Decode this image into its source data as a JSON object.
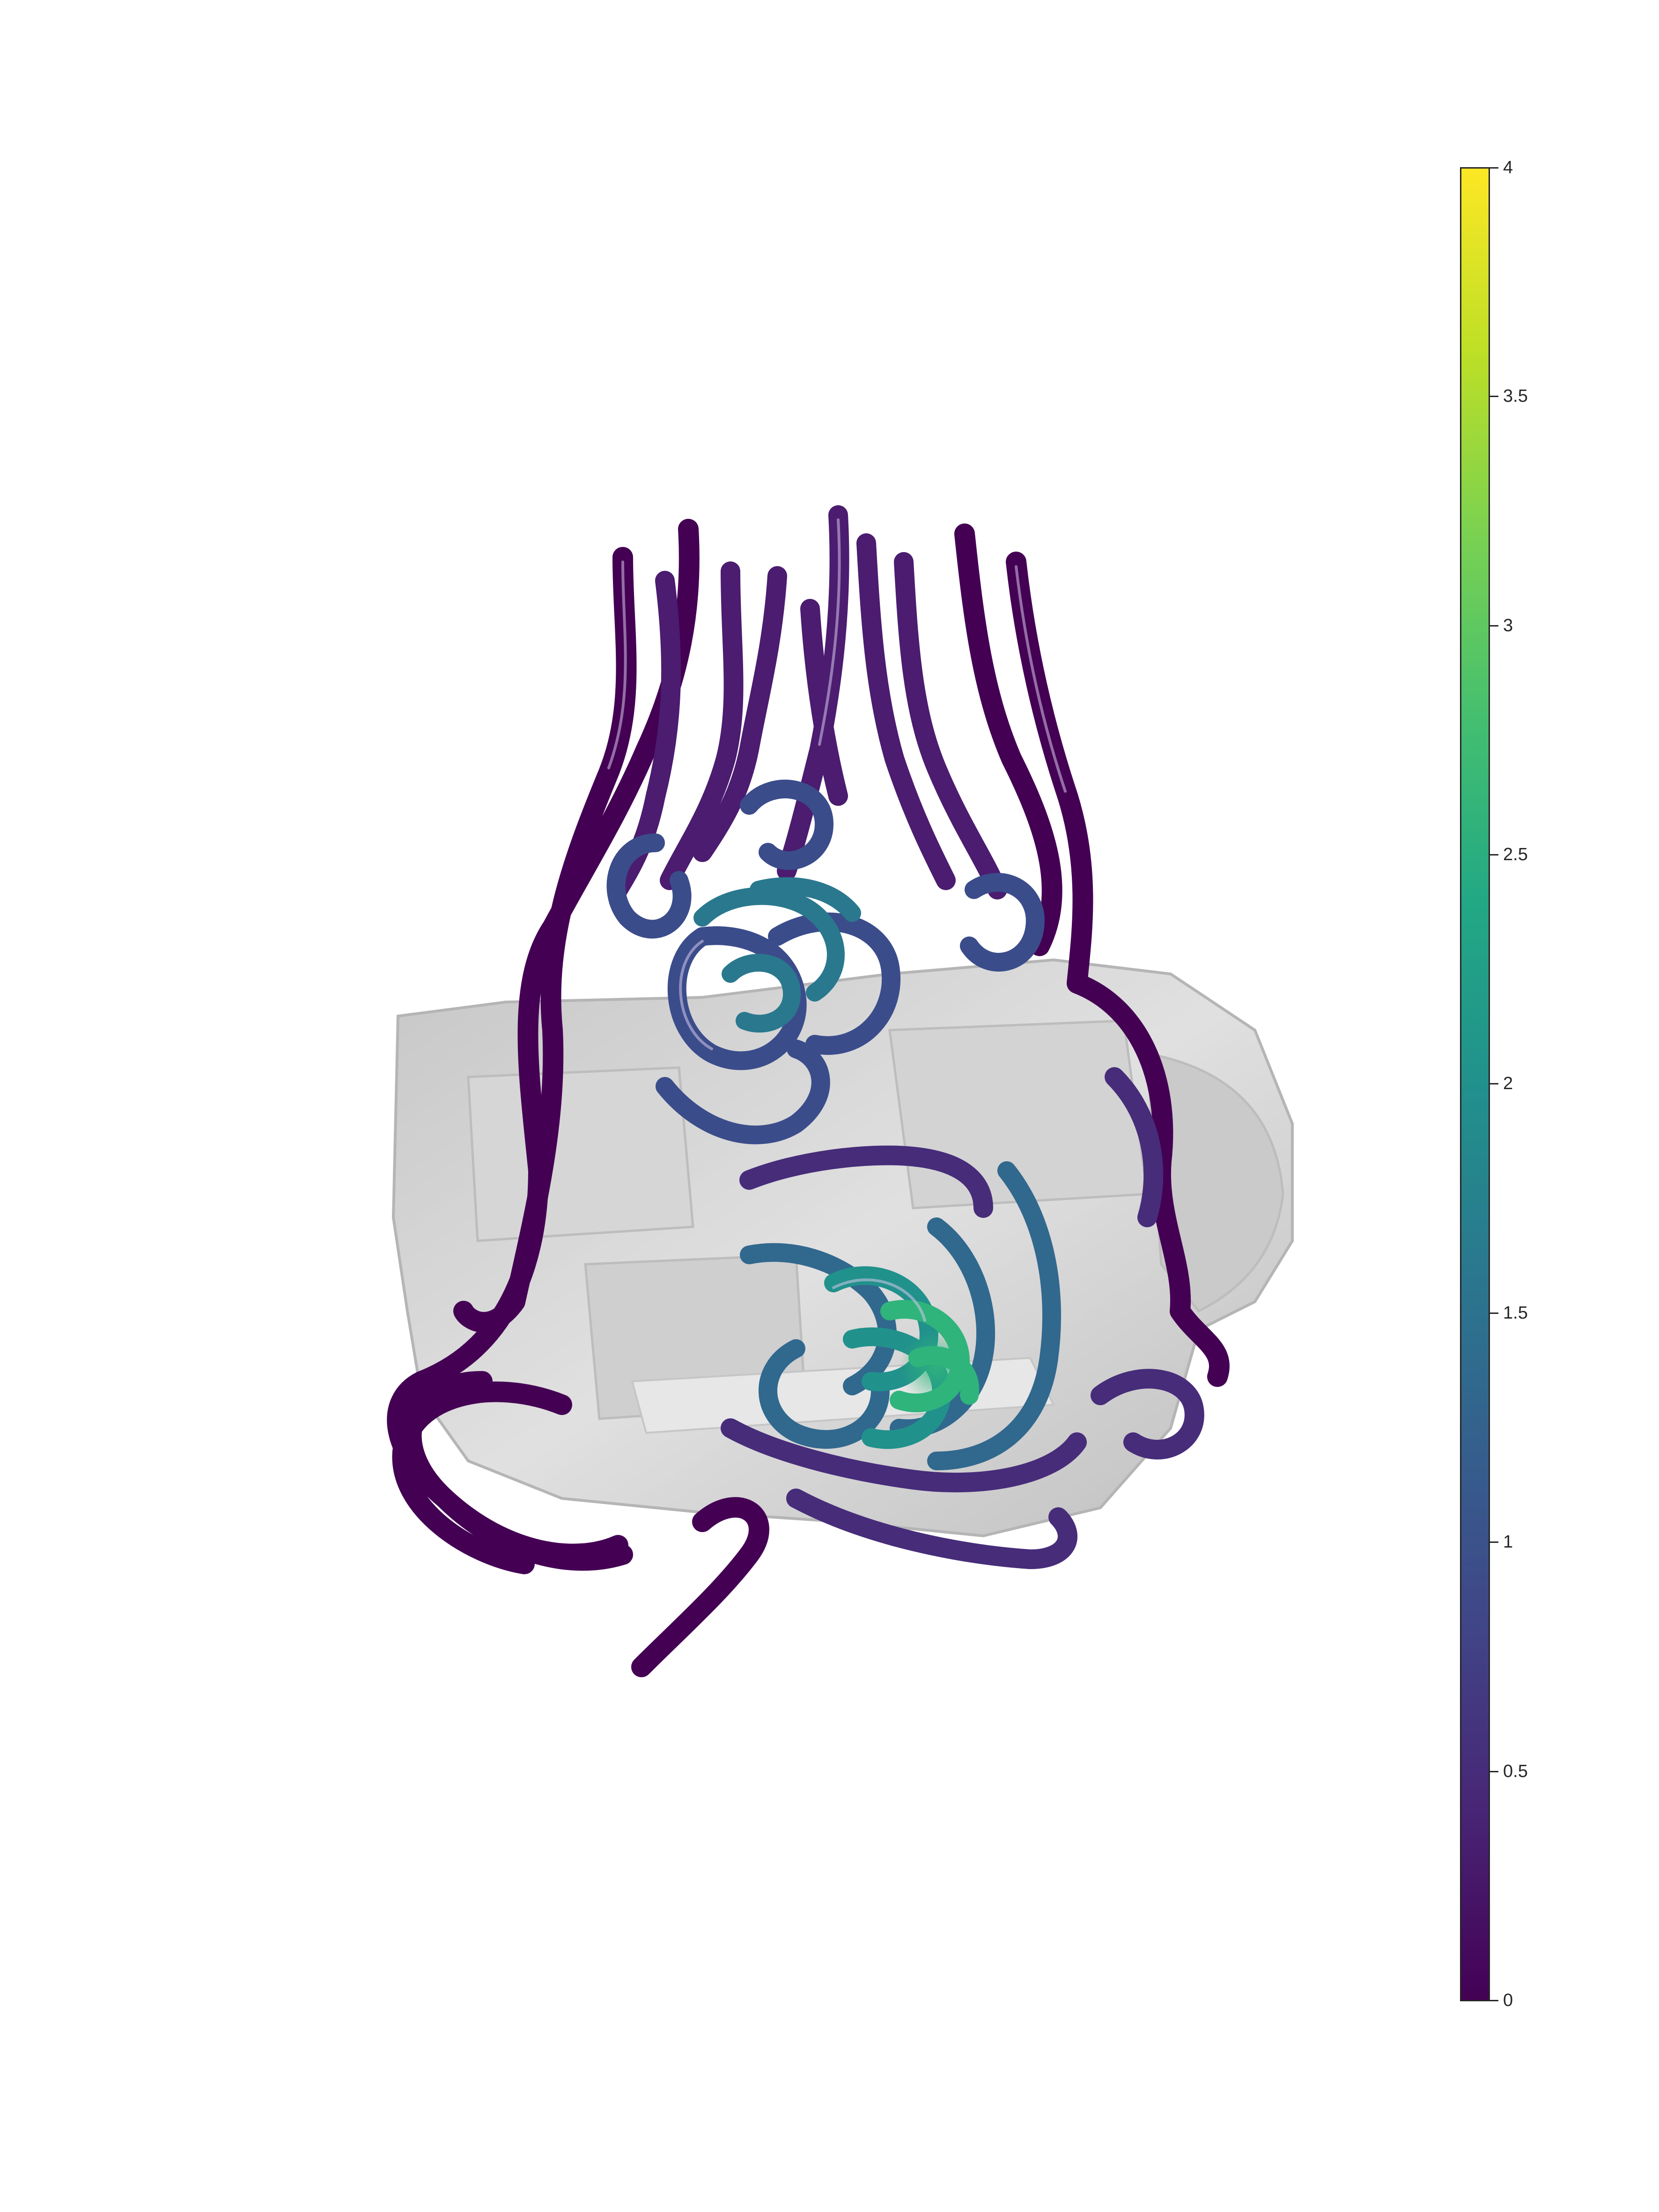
{
  "figure": {
    "colormap": "viridis",
    "shell_color": "#8c8c8c",
    "background": "#ffffff",
    "colorbar": {
      "min": 0,
      "max": 4,
      "tick_labels": [
        "0",
        "0.5",
        "1",
        "1.5",
        "2",
        "2.5",
        "3",
        "3.5",
        "4"
      ]
    }
  }
}
